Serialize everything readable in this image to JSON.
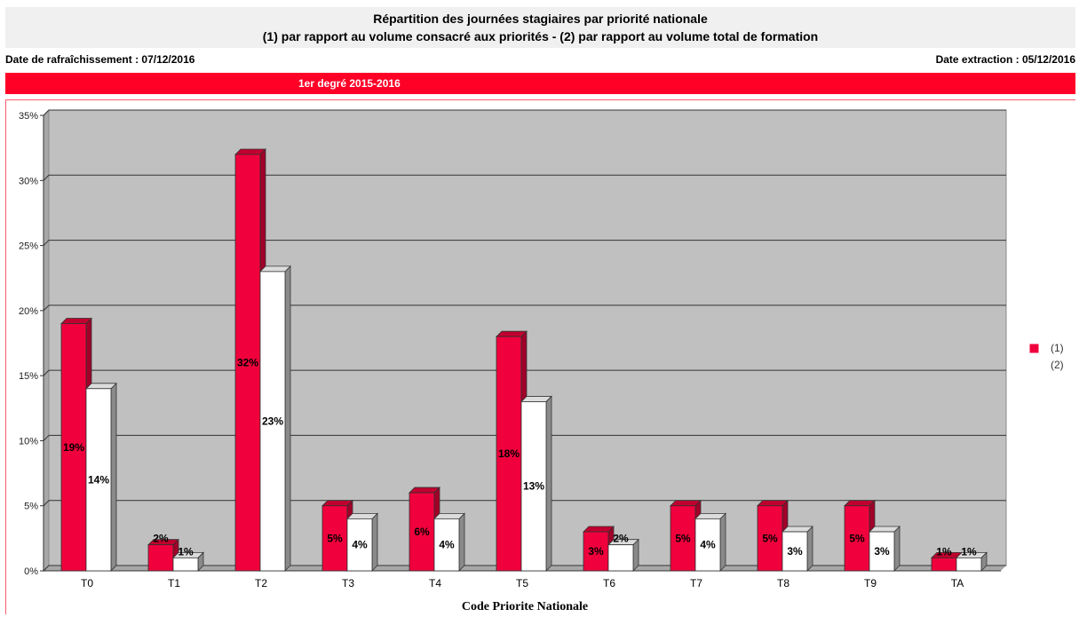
{
  "header": {
    "title_line1": "Répartition des journées stagiaires par priorité nationale",
    "title_line2": "(1) par rapport au volume consacré aux priorités - (2) par rapport au volume total de formation",
    "refresh_date": "Date de rafraîchissement : 07/12/2016",
    "extraction_date": "Date extraction : 05/12/2016",
    "section": "1er degré 2015-2016"
  },
  "colors": {
    "series1": "#f0003c",
    "series2": "#ffffff",
    "plot_bg": "#c0c0c0",
    "section_bar": "#ff0027"
  },
  "chart_data": {
    "type": "bar",
    "categories": [
      "T0",
      "T1",
      "T2",
      "T3",
      "T4",
      "T5",
      "T6",
      "T7",
      "T8",
      "T9",
      "TA"
    ],
    "series": [
      {
        "name": "(1)",
        "values": [
          19,
          2,
          32,
          5,
          6,
          18,
          3,
          5,
          5,
          5,
          1
        ],
        "labels": [
          "19%",
          "2%",
          "32%",
          "5%",
          "6%",
          "18%",
          "3%",
          "5%",
          "5%",
          "5%",
          "1%"
        ]
      },
      {
        "name": "(2)",
        "values": [
          14,
          1,
          23,
          4,
          4,
          13,
          2,
          4,
          3,
          3,
          1
        ],
        "labels": [
          "14%",
          "1%",
          "23%",
          "4%",
          "4%",
          "13%",
          "2%",
          "4%",
          "3%",
          "3%",
          "1%"
        ]
      }
    ],
    "yticks": [
      "0%",
      "5%",
      "10%",
      "15%",
      "20%",
      "25%",
      "30%",
      "35%"
    ],
    "ylim": [
      0,
      35
    ],
    "xlabel": "Code Priorite Nationale",
    "ylabel": "",
    "grid": true,
    "legend_position": "right"
  }
}
